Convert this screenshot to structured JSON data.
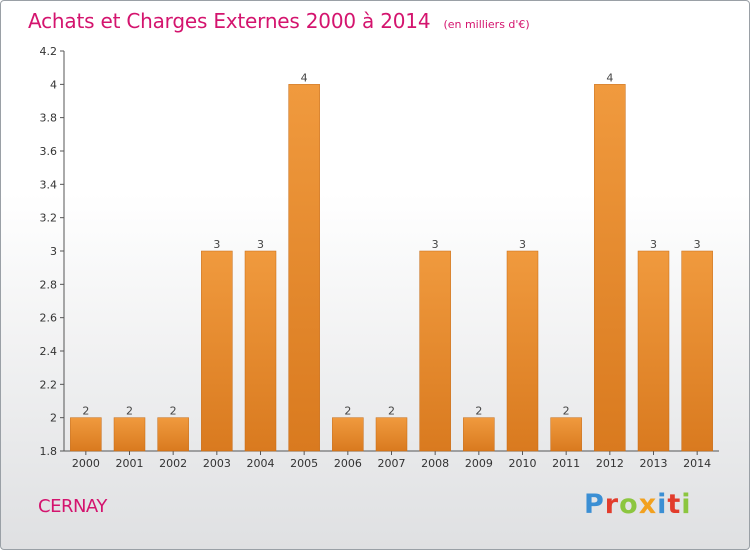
{
  "header": {
    "title": "Achats et Charges Externes 2000 à 2014",
    "subtitle": "(en milliers d'€)"
  },
  "footer": {
    "commune": "CERNAY",
    "brand": "Proxiti",
    "brand_colors": [
      "#3b8fd4",
      "#e23c2c",
      "#8cc63f",
      "#f2a11f",
      "#3b8fd4",
      "#e23c2c",
      "#8cc63f"
    ]
  },
  "chart_data": {
    "type": "bar",
    "categories": [
      "2000",
      "2001",
      "2002",
      "2003",
      "2004",
      "2005",
      "2006",
      "2007",
      "2008",
      "2009",
      "2010",
      "2011",
      "2012",
      "2013",
      "2014"
    ],
    "values": [
      2,
      2,
      2,
      3,
      3,
      4,
      2,
      2,
      3,
      2,
      3,
      2,
      4,
      3,
      3
    ],
    "data_labels": [
      "2",
      "2",
      "2",
      "3",
      "3",
      "4",
      "2",
      "2",
      "3",
      "2",
      "3",
      "2",
      "4",
      "3",
      "3"
    ],
    "ylim": [
      1.8,
      4.2
    ],
    "yticks": [
      1.8,
      2,
      2.2,
      2.4,
      2.6,
      2.8,
      3,
      3.2,
      3.4,
      3.6,
      3.8,
      4,
      4.2
    ],
    "ytick_labels": [
      "1.8",
      "2",
      "2.2",
      "2.4",
      "2.6",
      "2.8",
      "3",
      "3.2",
      "3.4",
      "3.6",
      "3.8",
      "4",
      "4.2"
    ],
    "xlabel": "",
    "ylabel": "",
    "grid": false,
    "bar_color": "#f09a3e",
    "bar_color_dark": "#d97a1f"
  }
}
